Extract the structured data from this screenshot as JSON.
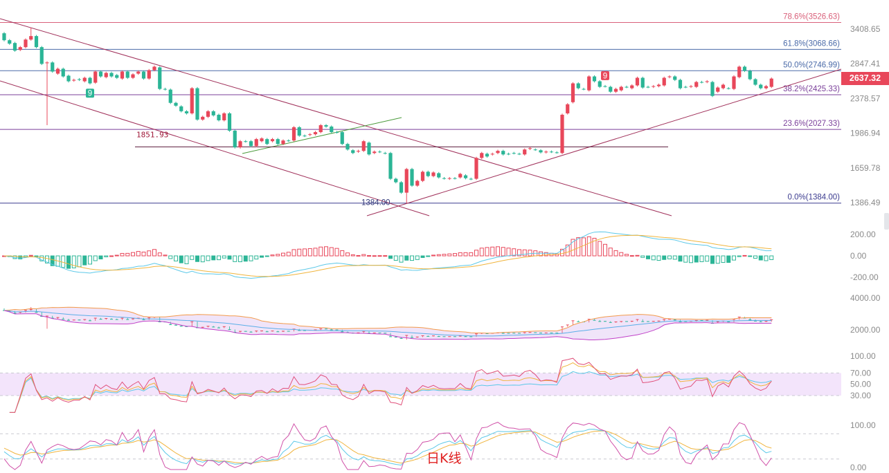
{
  "chart_data": [
    {
      "type": "candlestick",
      "scale": "log",
      "up_color": "#e8475a",
      "down_color": "#2bb596",
      "y_ticks": [
        "3408.65",
        "2847.41",
        "2378.57",
        "1986.94",
        "1659.78",
        "1386.49"
      ],
      "last_price": "2637.32",
      "candles": [
        [
          3335,
          3217
        ],
        [
          3217,
          3160
        ],
        [
          3171,
          3048
        ],
        [
          3059,
          3104
        ],
        [
          3104,
          3228
        ],
        [
          3228,
          3287
        ],
        [
          3287,
          3104
        ],
        [
          3104,
          2846
        ],
        [
          2856,
          2867
        ],
        [
          2867,
          2735
        ],
        [
          2706,
          2775
        ],
        [
          2775,
          2667
        ],
        [
          2677,
          2601
        ],
        [
          2610,
          2620
        ],
        [
          2629,
          2620
        ],
        [
          2601,
          2648
        ],
        [
          2648,
          2573
        ],
        [
          2582,
          2735
        ],
        [
          2735,
          2667
        ],
        [
          2657,
          2716
        ],
        [
          2716,
          2667
        ],
        [
          2686,
          2648
        ],
        [
          2638,
          2735
        ],
        [
          2735,
          2648
        ],
        [
          2648,
          2696
        ],
        [
          2706,
          2735
        ],
        [
          2735,
          2638
        ],
        [
          2638,
          2755
        ],
        [
          2755,
          2805
        ],
        [
          2795,
          2500
        ],
        [
          2500,
          2495
        ],
        [
          2491,
          2326
        ],
        [
          2326,
          2292
        ],
        [
          2284,
          2227
        ],
        [
          2227,
          2203
        ],
        [
          2203,
          2509
        ],
        [
          2509,
          2133
        ],
        [
          2133,
          2164
        ],
        [
          2164,
          2227
        ],
        [
          2227,
          2180
        ],
        [
          2187,
          2125
        ],
        [
          2125,
          2203
        ],
        [
          2203,
          2014
        ],
        [
          2014,
          1847
        ],
        [
          1847,
          1907
        ],
        [
          1907,
          1905
        ],
        [
          1907,
          1860
        ],
        [
          1860,
          1928
        ],
        [
          1907,
          1935
        ],
        [
          1928,
          1880
        ],
        [
          1907,
          1928
        ],
        [
          1928,
          1880
        ],
        [
          1880,
          1914
        ],
        [
          1914,
          1912
        ],
        [
          1914,
          2050
        ],
        [
          2050,
          1963
        ],
        [
          1963,
          1960
        ],
        [
          1970,
          1977
        ],
        [
          1977,
          1999
        ],
        [
          1999,
          2072
        ],
        [
          2072,
          2057
        ],
        [
          2057,
          1999
        ],
        [
          1999,
          1996
        ],
        [
          1999,
          1880
        ],
        [
          1880,
          1827
        ],
        [
          1820,
          1794
        ],
        [
          1807,
          1814
        ],
        [
          1814,
          1907
        ],
        [
          1893,
          1781
        ],
        [
          1794,
          1807
        ],
        [
          1807,
          1805
        ],
        [
          1794,
          1792
        ],
        [
          1794,
          1570
        ],
        [
          1570,
          1542
        ],
        [
          1542,
          1461
        ],
        [
          1461,
          1651
        ],
        [
          1651,
          1515
        ],
        [
          1515,
          1553
        ],
        [
          1553,
          1628
        ],
        [
          1628,
          1592
        ],
        [
          1592,
          1622
        ],
        [
          1616,
          1581
        ],
        [
          1575,
          1573
        ],
        [
          1570,
          1575
        ],
        [
          1575,
          1574
        ],
        [
          1581,
          1610
        ],
        [
          1598,
          1575
        ],
        [
          1570,
          1568
        ],
        [
          1570,
          1749
        ],
        [
          1749,
          1794
        ],
        [
          1787,
          1762
        ],
        [
          1781,
          1787
        ],
        [
          1794,
          1814
        ],
        [
          1814,
          1781
        ],
        [
          1787,
          1785
        ],
        [
          1794,
          1792
        ],
        [
          1787,
          1786
        ],
        [
          1781,
          1827
        ],
        [
          1833,
          1840
        ],
        [
          1827,
          1825
        ],
        [
          1820,
          1800
        ],
        [
          1800,
          1807
        ],
        [
          1807,
          1805
        ],
        [
          1800,
          1799
        ],
        [
          1794,
          2187
        ],
        [
          2203,
          2309
        ],
        [
          2334,
          2573
        ],
        [
          2573,
          2509
        ],
        [
          2500,
          2498
        ],
        [
          2482,
          2667
        ],
        [
          2667,
          2601
        ],
        [
          2601,
          2527
        ],
        [
          2536,
          2534
        ],
        [
          2527,
          2464
        ],
        [
          2464,
          2500
        ],
        [
          2482,
          2527
        ],
        [
          2527,
          2525
        ],
        [
          2509,
          2546
        ],
        [
          2546,
          2648
        ],
        [
          2648,
          2518
        ],
        [
          2527,
          2525
        ],
        [
          2527,
          2536
        ],
        [
          2536,
          2555
        ],
        [
          2546,
          2648
        ],
        [
          2657,
          2667
        ],
        [
          2667,
          2620
        ],
        [
          2620,
          2509
        ],
        [
          2527,
          2525
        ],
        [
          2527,
          2536
        ],
        [
          2527,
          2591
        ],
        [
          2591,
          2589
        ],
        [
          2591,
          2601
        ],
        [
          2591,
          2411
        ],
        [
          2464,
          2518
        ],
        [
          2509,
          2555
        ],
        [
          2509,
          2508
        ],
        [
          2500,
          2667
        ],
        [
          2657,
          2805
        ],
        [
          2805,
          2745
        ],
        [
          2745,
          2629
        ],
        [
          2629,
          2555
        ],
        [
          2555,
          2509
        ],
        [
          2509,
          2536
        ],
        [
          2527,
          2637.32
        ]
      ],
      "wick_overrides": [
        {
          "i": 5,
          "high": 3433
        },
        {
          "i": 8,
          "low": 2072
        },
        {
          "i": 75,
          "low": 1384
        }
      ],
      "fib_levels": [
        {
          "label": "78.6%(3526.63)",
          "price": 3526.63,
          "color": "#d9607a"
        },
        {
          "label": "61.8%(3068.66)",
          "price": 3068.66,
          "color": "#4a6aa8"
        },
        {
          "label": "50.0%(2746.99)",
          "price": 2746.99,
          "color": "#4a6aa8"
        },
        {
          "label": "38.2%(2425.33)",
          "price": 2425.33,
          "color": "#7a3f9a"
        },
        {
          "label": "23.6%(2027.33)",
          "price": 2027.33,
          "color": "#7a3f9a"
        },
        {
          "label": "0.0%(1384.00)",
          "price": 1384.0,
          "color": "#3b3b8f"
        }
      ],
      "annotations": [
        {
          "text": "1851.93",
          "price": 1851.93
        },
        {
          "text": "1384.00",
          "price": 1384.0
        }
      ],
      "signal_markers": [
        {
          "i": 16,
          "text": "9",
          "color": "#2bb596",
          "position": "below"
        },
        {
          "i": 112,
          "text": "9",
          "color": "#e8475a",
          "position": "above"
        }
      ]
    },
    {
      "type": "macd",
      "y_ticks": [
        "200.00",
        "0.00",
        "-200.00"
      ],
      "colors": {
        "dif": "#5bc8e8",
        "dea": "#f0b43c",
        "up": "#e8475a",
        "down": "#2bb596"
      }
    },
    {
      "type": "boll",
      "y_ticks": [
        "4000.00",
        "2000.00"
      ],
      "colors": {
        "upper": "#f39a4a",
        "mid": "#5aaee8",
        "lower": "#c040c8",
        "fill": "#ead8f6"
      }
    },
    {
      "type": "rsi",
      "y_ticks": [
        "100.00",
        "70.00",
        "50.00",
        "30.00"
      ],
      "colors": {
        "rsi6": "#e0507a",
        "rsi12": "#f0b43c",
        "rsi24": "#5bc8e8",
        "band": "#f3e4fb"
      }
    },
    {
      "type": "kdj",
      "y_ticks": [
        "100.00",
        "0.00"
      ],
      "colors": {
        "k": "#5bc8e8",
        "d": "#f0b43c",
        "j": "#d050a8"
      }
    }
  ],
  "period_label": "日K线"
}
